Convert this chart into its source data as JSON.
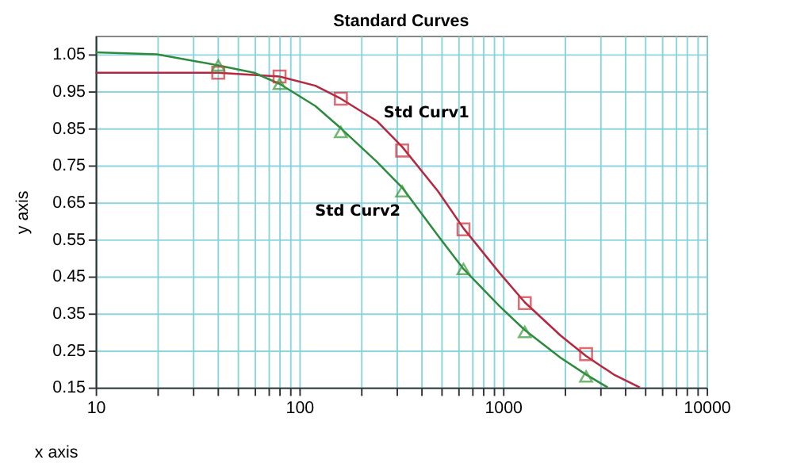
{
  "chart_data": {
    "type": "scatter",
    "title": "Standard Curves",
    "xlabel": "x axis",
    "ylabel": "y axis",
    "log": "x",
    "xlim": [
      10,
      10000
    ],
    "ylim": [
      0.15,
      1.1
    ],
    "xticks": [
      10,
      {
        "value": 20,
        "label": null
      },
      {
        "value": 30,
        "label": null
      },
      {
        "value": 40,
        "label": null
      },
      {
        "value": 50,
        "label": null
      },
      {
        "value": 60,
        "label": null
      },
      {
        "value": 70,
        "label": null
      },
      {
        "value": 80,
        "label": null
      },
      {
        "value": 90,
        "label": null
      },
      100,
      {
        "value": 200,
        "label": null
      },
      {
        "value": 300,
        "label": null
      },
      {
        "value": 400,
        "label": null
      },
      {
        "value": 500,
        "label": null
      },
      {
        "value": 600,
        "label": null
      },
      {
        "value": 700,
        "label": null
      },
      {
        "value": 800,
        "label": null
      },
      {
        "value": 900,
        "label": null
      },
      1000,
      {
        "value": 2000,
        "label": null
      },
      {
        "value": 3000,
        "label": null
      },
      {
        "value": 4000,
        "label": null
      },
      {
        "value": 5000,
        "label": null
      },
      {
        "value": 6000,
        "label": null
      },
      {
        "value": 7000,
        "label": null
      },
      {
        "value": 8000,
        "label": null
      },
      {
        "value": 9000,
        "label": null
      },
      10000
    ],
    "yticks": [
      {
        "value": 0.15,
        "label": "0.15"
      },
      {
        "value": 0.25,
        "label": "0.25"
      },
      {
        "value": 0.35,
        "label": "0.35"
      },
      {
        "value": 0.45,
        "label": "0.45"
      },
      {
        "value": 0.55,
        "label": "0.55"
      },
      {
        "value": 0.65,
        "label": "0.65"
      },
      {
        "value": 0.75,
        "label": "0.75"
      },
      {
        "value": 0.85,
        "label": "0.85"
      },
      {
        "value": 0.95,
        "label": "0.95"
      },
      {
        "value": 1.05,
        "label": "1.05"
      }
    ],
    "grid": true,
    "series": [
      {
        "type": "line",
        "name": "Std Curv1",
        "color": "#b5283f",
        "marker": "none",
        "x": [
          10,
          20,
          40,
          80,
          120,
          160,
          240,
          320,
          480,
          640,
          960,
          1280,
          1920,
          2560,
          3500,
          4700
        ],
        "values": [
          1.0,
          1.0,
          1.0,
          0.99,
          0.965,
          0.93,
          0.87,
          0.8,
          0.68,
          0.58,
          0.46,
          0.38,
          0.29,
          0.235,
          0.185,
          0.15
        ]
      },
      {
        "type": "line",
        "name": "Std Curv2",
        "color": "#2e8b3e",
        "marker": "none",
        "x": [
          10,
          20,
          40,
          60,
          80,
          120,
          160,
          240,
          320,
          480,
          640,
          960,
          1280,
          1920,
          2560,
          3270
        ],
        "values": [
          1.055,
          1.05,
          1.02,
          1.0,
          0.97,
          0.91,
          0.85,
          0.76,
          0.69,
          0.56,
          0.47,
          0.37,
          0.305,
          0.23,
          0.185,
          0.15
        ]
      },
      {
        "type": "scatter",
        "color": "#d0303a",
        "marker": "square",
        "x": [
          40,
          80,
          160,
          320,
          640,
          1280,
          2560
        ],
        "values": [
          1.0,
          0.99,
          0.93,
          0.79,
          0.577,
          0.378,
          0.24
        ]
      },
      {
        "type": "scatter",
        "color": "#3a9a3a",
        "marker": "triangle",
        "x": [
          40,
          80,
          160,
          320,
          640,
          1280,
          2560
        ],
        "values": [
          1.02,
          0.97,
          0.84,
          0.68,
          0.47,
          0.3,
          0.18
        ]
      }
    ]
  }
}
